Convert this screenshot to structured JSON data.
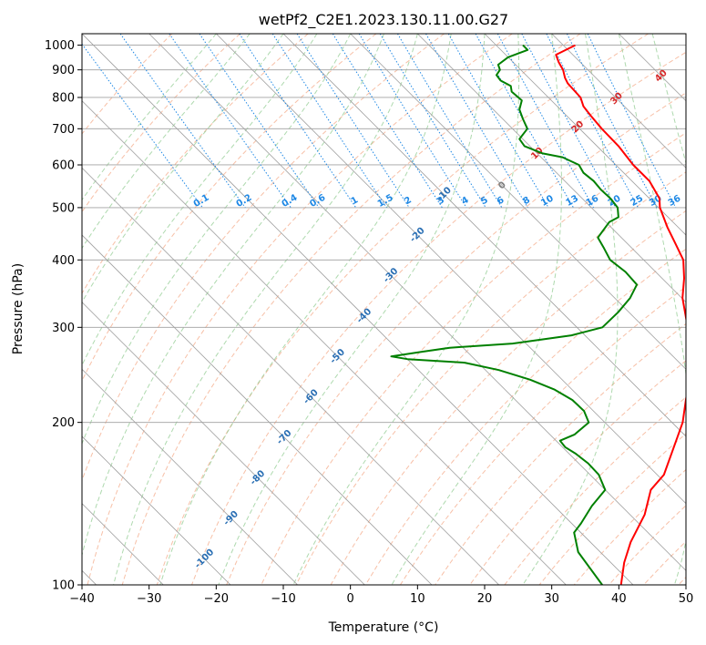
{
  "chart_data": {
    "type": "line",
    "chart_kind": "skew-T log-P diagram",
    "title": "wetPf2_C2E1.2023.130.11.00.G27",
    "xlabel": "Temperature (°C)",
    "ylabel": "Pressure (hPa)",
    "xlim": [
      -40,
      50
    ],
    "ylim": [
      1050,
      100
    ],
    "y_scale": "log",
    "grid": true,
    "x_ticks": [
      -40,
      -30,
      -20,
      -10,
      0,
      10,
      20,
      30,
      40,
      50
    ],
    "x_tick_labels": [
      "−40",
      "−30",
      "−20",
      "−10",
      "0",
      "10",
      "20",
      "30",
      "40",
      "50"
    ],
    "y_ticks": [
      1000,
      900,
      800,
      700,
      600,
      500,
      400,
      300,
      200,
      100
    ],
    "y_tick_labels": [
      "1000",
      "900",
      "800",
      "700",
      "600",
      "500",
      "400",
      "300",
      "200",
      "100"
    ],
    "colors": {
      "temperature": "#ff0000",
      "dewpoint": "#008000",
      "isotherm": "#a0a0a0",
      "dry_adiabat": "#f4a582",
      "moist_adiabat": "#8cc98c",
      "mixing_ratio": "#1e88e5",
      "isotherm_label": "#2a6fb4",
      "theta_label": "#d62728",
      "zero_label": "#808080"
    },
    "series": [
      {
        "key": "temperature",
        "points": [
          [
            1000,
            31.8
          ],
          [
            960,
            27.5
          ],
          [
            930,
            26.8
          ],
          [
            900,
            26.3
          ],
          [
            870,
            25.4
          ],
          [
            850,
            25.0
          ],
          [
            800,
            24.8
          ],
          [
            770,
            23.9
          ],
          [
            740,
            23.6
          ],
          [
            700,
            23.3
          ],
          [
            650,
            23.2
          ],
          [
            600,
            22.6
          ],
          [
            560,
            22.6
          ],
          [
            520,
            21.5
          ],
          [
            500,
            20.2
          ],
          [
            460,
            18.4
          ],
          [
            430,
            17.2
          ],
          [
            400,
            15.9
          ],
          [
            370,
            13.3
          ],
          [
            340,
            10.1
          ],
          [
            300,
            6.5
          ],
          [
            270,
            3.7
          ],
          [
            250,
            0.6
          ],
          [
            220,
            -4.6
          ],
          [
            200,
            -8.4
          ],
          [
            180,
            -13.4
          ],
          [
            160,
            -19.0
          ],
          [
            150,
            -23.2
          ],
          [
            135,
            -27.8
          ],
          [
            120,
            -34.0
          ],
          [
            110,
            -38.0
          ],
          [
            100,
            -41.8
          ]
        ]
      },
      {
        "key": "dewpoint",
        "points": [
          [
            1000,
            24.0
          ],
          [
            980,
            24.0
          ],
          [
            950,
            20.0
          ],
          [
            920,
            17.4
          ],
          [
            900,
            16.9
          ],
          [
            880,
            15.6
          ],
          [
            860,
            15.4
          ],
          [
            840,
            16.1
          ],
          [
            820,
            15.4
          ],
          [
            790,
            15.6
          ],
          [
            760,
            13.9
          ],
          [
            730,
            13.0
          ],
          [
            700,
            12.2
          ],
          [
            670,
            9.5
          ],
          [
            650,
            9.2
          ],
          [
            630,
            10.8
          ],
          [
            620,
            13.2
          ],
          [
            600,
            14.5
          ],
          [
            580,
            14.0
          ],
          [
            560,
            14.3
          ],
          [
            540,
            14.1
          ],
          [
            520,
            14.2
          ],
          [
            500,
            13.9
          ],
          [
            480,
            12.6
          ],
          [
            470,
            10.5
          ],
          [
            440,
            6.5
          ],
          [
            420,
            5.8
          ],
          [
            400,
            5.0
          ],
          [
            380,
            5.5
          ],
          [
            360,
            5.3
          ],
          [
            340,
            2.3
          ],
          [
            320,
            -1.6
          ],
          [
            300,
            -6.2
          ],
          [
            290,
            -12.0
          ],
          [
            280,
            -22.0
          ],
          [
            275,
            -32.0
          ],
          [
            270,
            -37.0
          ],
          [
            265,
            -42.0
          ],
          [
            262,
            -40.0
          ],
          [
            258,
            -32.0
          ],
          [
            250,
            -28.0
          ],
          [
            240,
            -24.8
          ],
          [
            230,
            -22.6
          ],
          [
            220,
            -21.5
          ],
          [
            210,
            -21.4
          ],
          [
            200,
            -22.4
          ],
          [
            190,
            -26.3
          ],
          [
            185,
            -29.4
          ],
          [
            180,
            -29.6
          ],
          [
            175,
            -29.0
          ],
          [
            168,
            -28.6
          ],
          [
            160,
            -28.7
          ],
          [
            150,
            -30.0
          ],
          [
            140,
            -34.4
          ],
          [
            130,
            -38.6
          ],
          [
            125,
            -41.0
          ],
          [
            115,
            -43.3
          ],
          [
            100,
            -44.6
          ]
        ]
      }
    ],
    "isotherm_labels": [
      "-100",
      "-90",
      "-80",
      "-70",
      "-60",
      "-50",
      "-40",
      "-30",
      "-20",
      "-10"
    ],
    "isotherm_label_temps": [
      -100,
      -90,
      -80,
      -70,
      -60,
      -50,
      -40,
      -30,
      -20,
      -10
    ],
    "mixing_ratio_labels": [
      "0.1",
      "0.2",
      "0.4",
      "0.6",
      "1",
      "1.5",
      "2",
      "3",
      "4",
      "5",
      "6",
      "8",
      "10",
      "13",
      "16",
      "20",
      "25",
      "30",
      "36"
    ],
    "mixing_ratio_values": [
      0.1,
      0.2,
      0.4,
      0.6,
      1,
      1.5,
      2,
      3,
      4,
      5,
      6,
      8,
      10,
      13,
      16,
      20,
      25,
      30,
      36
    ],
    "theta_labels": [
      "0",
      "10",
      "20",
      "30",
      "40"
    ],
    "theta_label_values": [
      0,
      10,
      20,
      30,
      40
    ]
  }
}
